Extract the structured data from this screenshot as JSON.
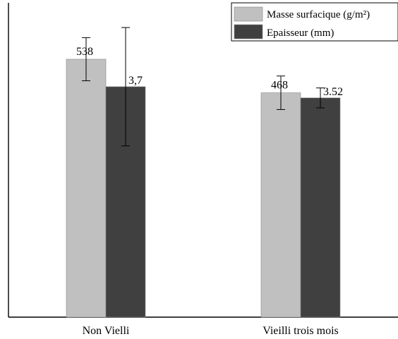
{
  "chart_data": {
    "type": "bar",
    "title": "",
    "xlabel": "",
    "ylabel": "",
    "categories": [
      "Non Vielli",
      "Vieilli trois mois"
    ],
    "series": [
      {
        "name": "Masse surfacique (g/m²)",
        "values": [
          538,
          468
        ],
        "value_labels": [
          "538",
          "468"
        ],
        "error": [
          45,
          35
        ],
        "color": "#c0c0c0"
      },
      {
        "name": "Epaisseur (mm)",
        "values": [
          3.7,
          3.52
        ],
        "value_labels": [
          "3,7",
          "3.52"
        ],
        "error": [
          0.95,
          0.16
        ],
        "color": "#404040"
      }
    ],
    "grid": false,
    "legend_position": "top-right",
    "axes_visible": "bottom-left"
  }
}
